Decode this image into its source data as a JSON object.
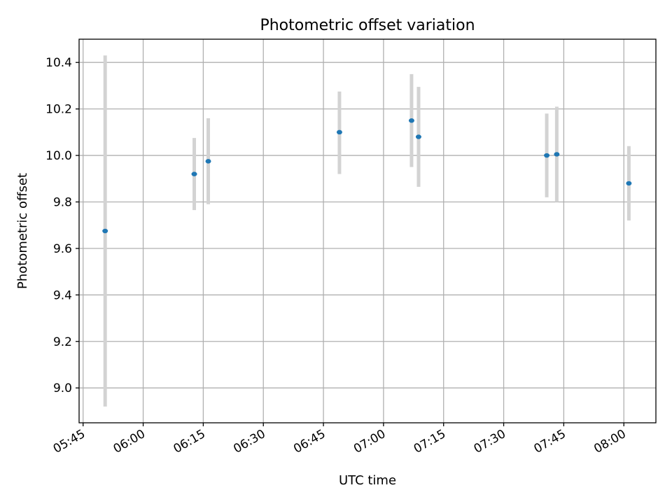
{
  "chart_data": {
    "type": "scatter",
    "title": "Photometric offset variation",
    "xlabel": "UTC time",
    "ylabel": "Photometric offset",
    "xlim": [
      "05:44",
      "08:08"
    ],
    "ylim": [
      8.85,
      10.5
    ],
    "x_ticks": [
      "05:45",
      "06:00",
      "06:15",
      "06:30",
      "06:45",
      "07:00",
      "07:15",
      "07:30",
      "07:45",
      "08:00"
    ],
    "y_ticks": [
      "9.0",
      "9.2",
      "9.4",
      "9.6",
      "9.8",
      "10.0",
      "10.2",
      "10.4"
    ],
    "grid": true,
    "marker_color": "#1f77b4",
    "errorbar_color": "#d3d3d3",
    "points": [
      {
        "x": "05:50:30",
        "y": 9.675,
        "y_low": 8.92,
        "y_high": 10.43
      },
      {
        "x": "06:12:45",
        "y": 9.92,
        "y_low": 9.765,
        "y_high": 10.075
      },
      {
        "x": "06:16:15",
        "y": 9.975,
        "y_low": 9.79,
        "y_high": 10.16
      },
      {
        "x": "06:49:00",
        "y": 10.1,
        "y_low": 9.92,
        "y_high": 10.275
      },
      {
        "x": "07:07:00",
        "y": 10.15,
        "y_low": 9.95,
        "y_high": 10.35
      },
      {
        "x": "07:08:45",
        "y": 10.08,
        "y_low": 9.865,
        "y_high": 10.295
      },
      {
        "x": "07:40:45",
        "y": 10.0,
        "y_low": 9.82,
        "y_high": 10.18
      },
      {
        "x": "07:43:15",
        "y": 10.005,
        "y_low": 9.8,
        "y_high": 10.21
      },
      {
        "x": "08:01:15",
        "y": 9.88,
        "y_low": 9.72,
        "y_high": 10.04
      }
    ]
  }
}
